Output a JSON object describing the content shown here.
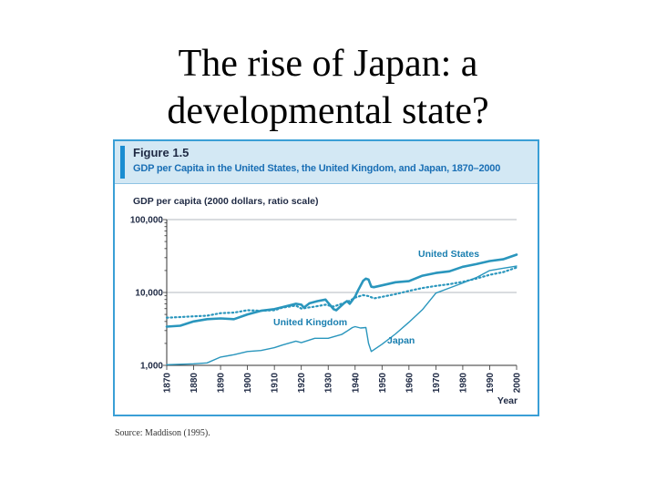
{
  "slide": {
    "title_line1": "The rise of Japan: a",
    "title_line2": "developmental state?"
  },
  "figure": {
    "label": "Figure 1.5",
    "caption": "GDP per Capita in the United States, the United Kingdom, and Japan, 1870–2000",
    "source": "Source: Maddison (1995)."
  },
  "colors": {
    "accent": "#1a8dd1",
    "series": "#2a96bd",
    "grid": "#9aa3aa",
    "header_bg": "#d3e8f4"
  },
  "chart_data": {
    "type": "line",
    "title": "GDP per Capita in the United States, the United Kingdom, and Japan, 1870–2000",
    "ylabel": "GDP per capita (2000 dollars, ratio scale)",
    "xlabel": "Year",
    "yscale": "log",
    "ylim": [
      1000,
      100000
    ],
    "xlim": [
      1870,
      2000
    ],
    "y_ticks": [
      1000,
      10000,
      100000
    ],
    "y_tick_labels": [
      "1,000",
      "10,000",
      "100,000"
    ],
    "x_ticks": [
      1870,
      1880,
      1890,
      1900,
      1910,
      1920,
      1930,
      1940,
      1950,
      1960,
      1970,
      1980,
      1990,
      2000
    ],
    "x_tick_labels": [
      "1870",
      "1880",
      "1890",
      "1900",
      "1910",
      "1920",
      "1930",
      "1940",
      "1950",
      "1960",
      "1970",
      "1980",
      "1990",
      "2000"
    ],
    "series": [
      {
        "name": "United States",
        "style": "solid-thick",
        "x": [
          1870,
          1875,
          1880,
          1885,
          1890,
          1895,
          1900,
          1905,
          1910,
          1913,
          1916,
          1918,
          1920,
          1921,
          1923,
          1926,
          1929,
          1930,
          1932,
          1933,
          1936,
          1937,
          1938,
          1940,
          1941,
          1943,
          1944,
          1945,
          1946,
          1947,
          1950,
          1955,
          1960,
          1965,
          1970,
          1975,
          1980,
          1985,
          1990,
          1995,
          2000
        ],
        "values": [
          3400,
          3500,
          4000,
          4300,
          4400,
          4300,
          5000,
          5600,
          5900,
          6300,
          6700,
          7000,
          6800,
          6200,
          7100,
          7600,
          8000,
          7200,
          5900,
          5700,
          7200,
          7600,
          7000,
          8800,
          10500,
          14500,
          15500,
          15000,
          12000,
          11800,
          12500,
          13800,
          14300,
          17000,
          18500,
          19500,
          22500,
          24500,
          27000,
          28500,
          33000
        ]
      },
      {
        "name": "United Kingdom",
        "style": "dotted",
        "x": [
          1870,
          1875,
          1880,
          1885,
          1890,
          1895,
          1900,
          1905,
          1910,
          1913,
          1918,
          1920,
          1925,
          1929,
          1932,
          1935,
          1938,
          1940,
          1943,
          1945,
          1947,
          1950,
          1955,
          1960,
          1965,
          1970,
          1975,
          1980,
          1985,
          1990,
          1995,
          2000
        ],
        "values": [
          4500,
          4600,
          4700,
          4800,
          5200,
          5300,
          5700,
          5600,
          5700,
          6200,
          6600,
          6000,
          6400,
          6800,
          6400,
          7000,
          7700,
          8500,
          9200,
          8900,
          8300,
          8700,
          9500,
          10500,
          11500,
          12300,
          13000,
          14000,
          15500,
          17500,
          19000,
          22000
        ]
      },
      {
        "name": "Japan",
        "style": "solid-thin",
        "x": [
          1870,
          1880,
          1885,
          1890,
          1895,
          1900,
          1905,
          1910,
          1913,
          1918,
          1920,
          1925,
          1930,
          1935,
          1937,
          1939,
          1940,
          1942,
          1944,
          1945,
          1946,
          1950,
          1955,
          1960,
          1965,
          1970,
          1975,
          1980,
          1985,
          1990,
          1995,
          2000
        ],
        "values": [
          1020,
          1050,
          1080,
          1300,
          1400,
          1550,
          1600,
          1750,
          1900,
          2150,
          2050,
          2350,
          2350,
          2650,
          2950,
          3300,
          3400,
          3250,
          3300,
          2000,
          1550,
          1950,
          2700,
          3900,
          5800,
          9800,
          11500,
          13500,
          16000,
          20000,
          21500,
          23000
        ]
      }
    ],
    "annotations": [
      {
        "series": "United States",
        "text": "United States"
      },
      {
        "series": "United Kingdom",
        "text": "United Kingdom"
      },
      {
        "series": "Japan",
        "text": "Japan"
      }
    ]
  }
}
